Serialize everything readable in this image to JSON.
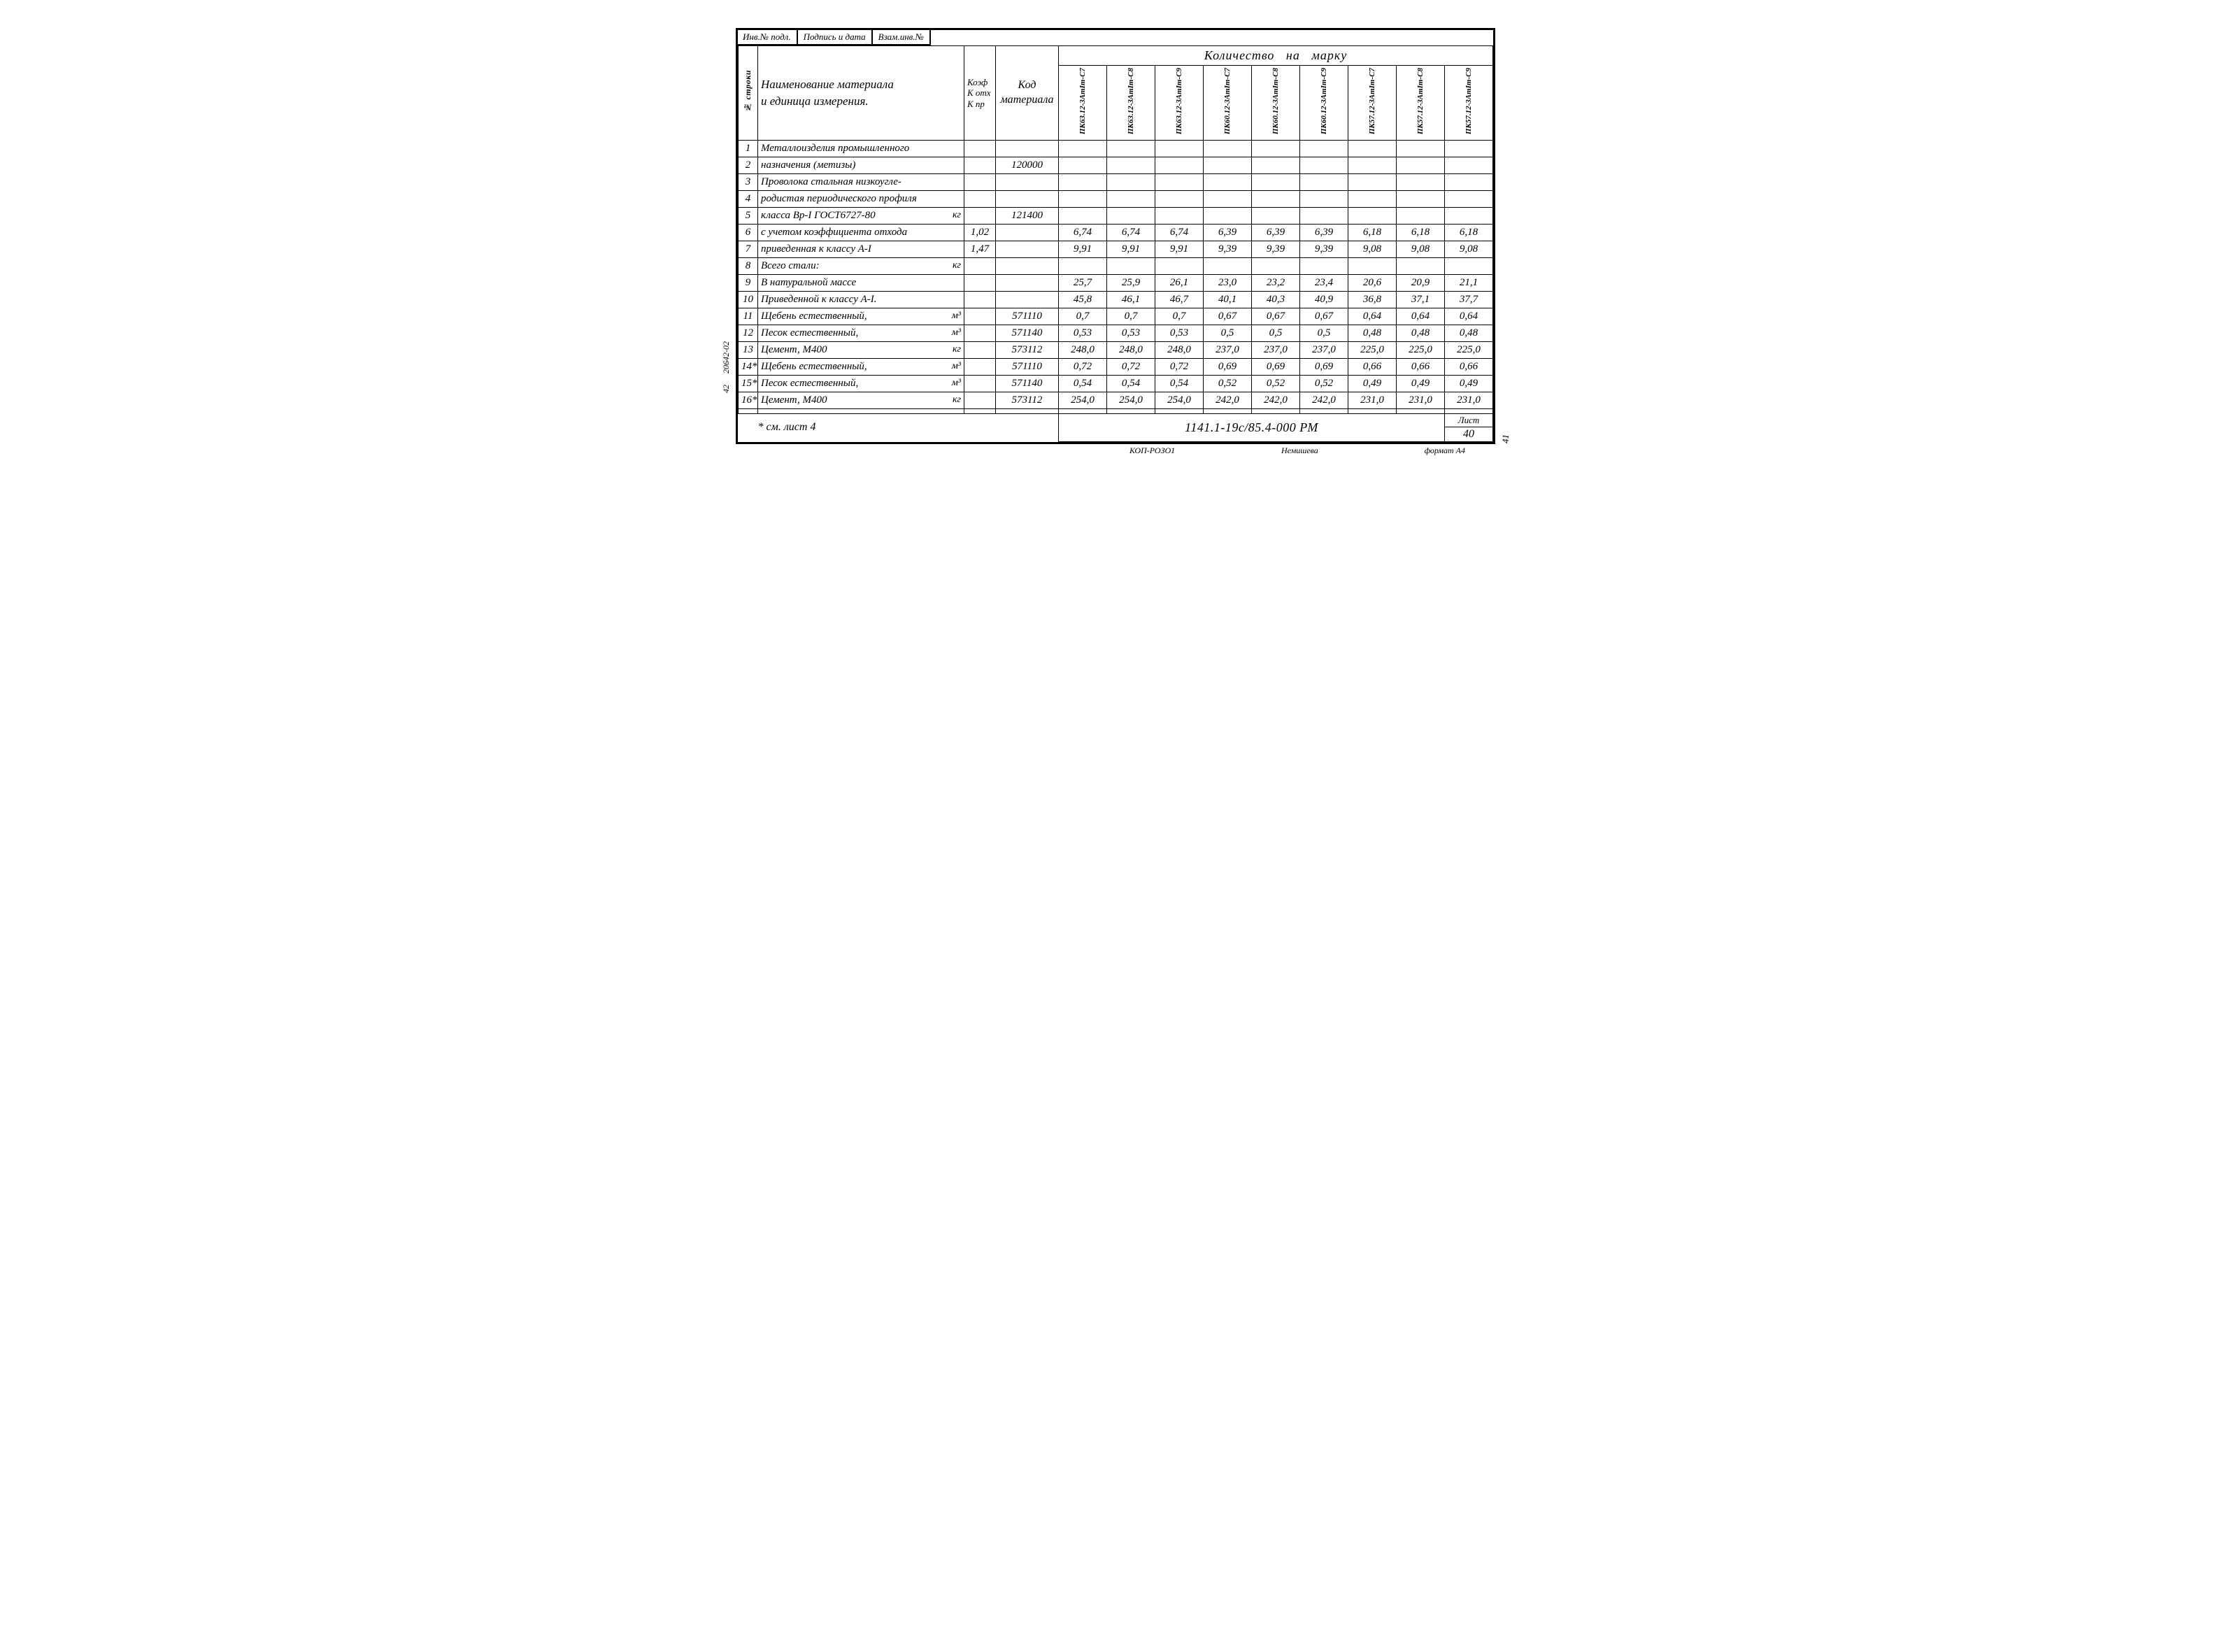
{
  "top_stamp": {
    "c1": "Инв.№ подл.",
    "c2": "Подпись и дата",
    "c3": "Взам.инв.№"
  },
  "headers": {
    "row_no": "№ строки",
    "name": "Наименование материала<br>и единица измерения.",
    "koef": "Коэф<br>К отх<br>К пр",
    "code": "Код<br>материала",
    "qty": "Количество&nbsp;&nbsp;&nbsp;на&nbsp;&nbsp;&nbsp;марку"
  },
  "col_labels": [
    "ПК63.12-3АтIт-С7",
    "ПК63.12-3АтIт-С8",
    "ПК63.12-3АтIт-С9",
    "ПК60.12-3АтIт-С7",
    "ПК60.12-3АтIт-С8",
    "ПК60.12-3АтIт-С9",
    "ПК57.12-3АтIт-С7",
    "ПК57.12-3АтIт-С8",
    "ПК57.12-3АтIт-С9"
  ],
  "rows": [
    {
      "n": "1",
      "name": "Металлоизделия промышленного",
      "koef": "",
      "code": "",
      "v": [
        "",
        "",
        "",
        "",
        "",
        "",
        "",
        "",
        ""
      ]
    },
    {
      "n": "2",
      "name": "назначения (метизы)",
      "koef": "",
      "code": "120000",
      "v": [
        "",
        "",
        "",
        "",
        "",
        "",
        "",
        "",
        ""
      ]
    },
    {
      "n": "3",
      "name": "Проволока стальная низкоугле-",
      "koef": "",
      "code": "",
      "v": [
        "",
        "",
        "",
        "",
        "",
        "",
        "",
        "",
        ""
      ]
    },
    {
      "n": "4",
      "name": "родистая периодического профиля",
      "koef": "",
      "code": "",
      "v": [
        "",
        "",
        "",
        "",
        "",
        "",
        "",
        "",
        ""
      ]
    },
    {
      "n": "5",
      "name": "класса Вр-I ГОСТ6727-80",
      "unit": "кг",
      "koef": "",
      "code": "121400",
      "v": [
        "",
        "",
        "",
        "",
        "",
        "",
        "",
        "",
        ""
      ]
    },
    {
      "n": "6",
      "name": "с учетом коэффициента отхода",
      "koef": "1,02",
      "code": "",
      "v": [
        "6,74",
        "6,74",
        "6,74",
        "6,39",
        "6,39",
        "6,39",
        "6,18",
        "6,18",
        "6,18"
      ]
    },
    {
      "n": "7",
      "name": "приведенная к классу А-I",
      "koef": "1,47",
      "code": "",
      "v": [
        "9,91",
        "9,91",
        "9,91",
        "9,39",
        "9,39",
        "9,39",
        "9,08",
        "9,08",
        "9,08"
      ]
    },
    {
      "n": "8",
      "name": "Всего стали:",
      "unit": "кг",
      "koef": "",
      "code": "",
      "v": [
        "",
        "",
        "",
        "",
        "",
        "",
        "",
        "",
        ""
      ]
    },
    {
      "n": "9",
      "name": "В натуральной массе",
      "koef": "",
      "code": "",
      "v": [
        "25,7",
        "25,9",
        "26,1",
        "23,0",
        "23,2",
        "23,4",
        "20,6",
        "20,9",
        "21,1"
      ]
    },
    {
      "n": "10",
      "name": "Приведенной к классу А-I.",
      "koef": "",
      "code": "",
      "v": [
        "45,8",
        "46,1",
        "46,7",
        "40,1",
        "40,3",
        "40,9",
        "36,8",
        "37,1",
        "37,7"
      ]
    },
    {
      "n": "11",
      "name": "Щебень естественный,",
      "unit": "м³",
      "koef": "",
      "code": "571110",
      "v": [
        "0,7",
        "0,7",
        "0,7",
        "0,67",
        "0,67",
        "0,67",
        "0,64",
        "0,64",
        "0,64"
      ]
    },
    {
      "n": "12",
      "name": "Песок естественный,",
      "unit": "м³",
      "koef": "",
      "code": "571140",
      "v": [
        "0,53",
        "0,53",
        "0,53",
        "0,5",
        "0,5",
        "0,5",
        "0,48",
        "0,48",
        "0,48"
      ]
    },
    {
      "n": "13",
      "name": "Цемент, М400",
      "unit": "кг",
      "koef": "",
      "code": "573112",
      "v": [
        "248,0",
        "248,0",
        "248,0",
        "237,0",
        "237,0",
        "237,0",
        "225,0",
        "225,0",
        "225,0"
      ]
    },
    {
      "n": "14*",
      "name": "Щебень естественный,",
      "unit": "м³",
      "koef": "",
      "code": "571110",
      "v": [
        "0,72",
        "0,72",
        "0,72",
        "0,69",
        "0,69",
        "0,69",
        "0,66",
        "0,66",
        "0,66"
      ]
    },
    {
      "n": "15*",
      "name": "Песок естественный,",
      "unit": "м³",
      "koef": "",
      "code": "571140",
      "v": [
        "0,54",
        "0,54",
        "0,54",
        "0,52",
        "0,52",
        "0,52",
        "0,49",
        "0,49",
        "0,49"
      ]
    },
    {
      "n": "16*",
      "name": "Цемент, М400",
      "unit": "кг",
      "koef": "",
      "code": "573112",
      "v": [
        "254,0",
        "254,0",
        "254,0",
        "242,0",
        "242,0",
        "242,0",
        "231,0",
        "231,0",
        "231,0"
      ]
    },
    {
      "n": "",
      "name": "",
      "koef": "",
      "code": "",
      "v": [
        "",
        "",
        "",
        "",
        "",
        "",
        "",
        "",
        ""
      ]
    }
  ],
  "footer": {
    "note": "* см. лист 4",
    "doc": "1141.1-19с/85.4-000 РМ",
    "sheet_label": "Лист",
    "sheet_no": "40"
  },
  "side": {
    "a": "20642-02",
    "b": "42"
  },
  "below": {
    "a": "КОП-РОЗО1",
    "b": "Немишева",
    "c": "формат А4"
  },
  "page": "41"
}
